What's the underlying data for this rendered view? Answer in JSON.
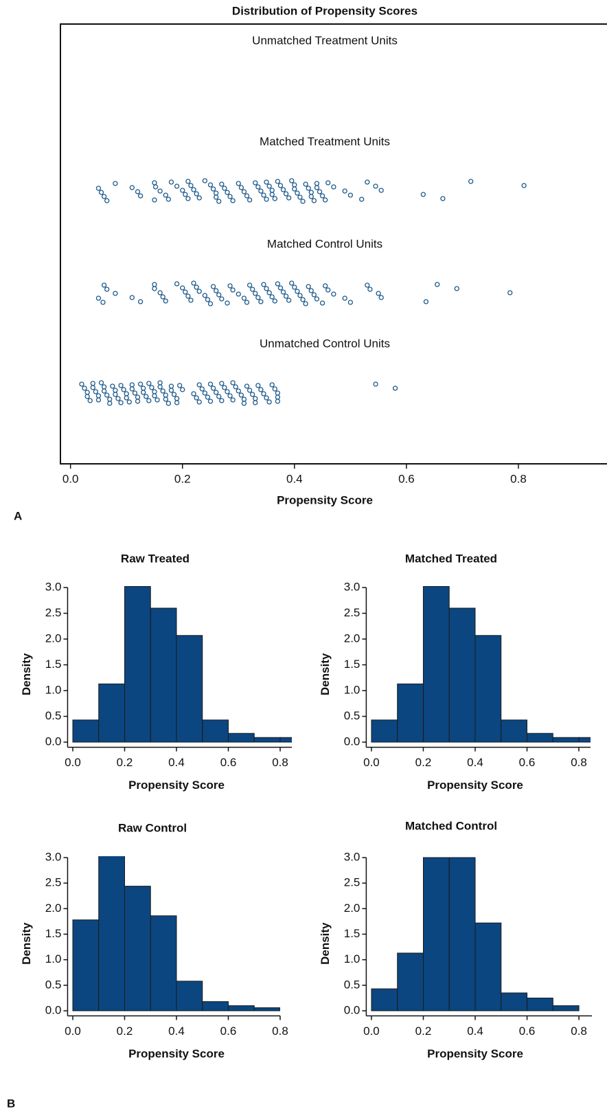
{
  "panel_labels": [
    "A",
    "B"
  ],
  "chart_data": [
    {
      "type": "strip",
      "title": "Distribution of Propensity Scores",
      "x_label": "Propensity Score",
      "xlim": [
        -0.018,
        0.957
      ],
      "xticks": [
        {
          "value": 0,
          "label": "0.0"
        },
        0.2,
        0.4,
        0.6,
        0.8
      ],
      "series": [
        {
          "name": "Unmatched Treatment Units",
          "color": "#1f5a8a",
          "values": []
        },
        {
          "name": "Matched Treatment Units",
          "color": "#1f5a8a",
          "values": [
            0.05,
            0.055,
            0.06,
            0.065,
            0.08,
            0.11,
            0.12,
            0.125,
            0.15,
            0.15,
            0.152,
            0.16,
            0.17,
            0.175,
            0.18,
            0.19,
            0.2,
            0.205,
            0.21,
            0.21,
            0.215,
            0.22,
            0.225,
            0.23,
            0.24,
            0.25,
            0.255,
            0.26,
            0.26,
            0.265,
            0.27,
            0.275,
            0.28,
            0.285,
            0.29,
            0.3,
            0.305,
            0.31,
            0.315,
            0.32,
            0.33,
            0.335,
            0.34,
            0.345,
            0.35,
            0.35,
            0.355,
            0.36,
            0.36,
            0.365,
            0.37,
            0.375,
            0.38,
            0.385,
            0.39,
            0.395,
            0.4,
            0.4,
            0.405,
            0.41,
            0.415,
            0.42,
            0.425,
            0.43,
            0.43,
            0.435,
            0.44,
            0.44,
            0.445,
            0.45,
            0.455,
            0.46,
            0.47,
            0.49,
            0.5,
            0.52,
            0.53,
            0.545,
            0.555,
            0.63,
            0.665,
            0.715,
            0.81
          ]
        },
        {
          "name": "Matched Control Units",
          "color": "#1f5a8a",
          "values": [
            0.05,
            0.058,
            0.06,
            0.065,
            0.08,
            0.11,
            0.125,
            0.15,
            0.15,
            0.16,
            0.165,
            0.17,
            0.19,
            0.2,
            0.205,
            0.21,
            0.215,
            0.22,
            0.225,
            0.23,
            0.24,
            0.245,
            0.25,
            0.255,
            0.26,
            0.265,
            0.27,
            0.28,
            0.285,
            0.29,
            0.3,
            0.31,
            0.315,
            0.32,
            0.325,
            0.33,
            0.335,
            0.34,
            0.345,
            0.35,
            0.355,
            0.36,
            0.365,
            0.37,
            0.375,
            0.38,
            0.385,
            0.39,
            0.395,
            0.4,
            0.405,
            0.41,
            0.415,
            0.42,
            0.425,
            0.43,
            0.435,
            0.44,
            0.45,
            0.455,
            0.46,
            0.47,
            0.49,
            0.5,
            0.53,
            0.535,
            0.55,
            0.555,
            0.635,
            0.655,
            0.69,
            0.785
          ]
        },
        {
          "name": "Unmatched Control Units",
          "color": "#1f5a8a",
          "values": [
            0.02,
            0.025,
            0.03,
            0.03,
            0.035,
            0.04,
            0.04,
            0.045,
            0.05,
            0.05,
            0.055,
            0.06,
            0.06,
            0.065,
            0.07,
            0.07,
            0.075,
            0.08,
            0.08,
            0.085,
            0.09,
            0.09,
            0.095,
            0.1,
            0.1,
            0.105,
            0.11,
            0.11,
            0.115,
            0.12,
            0.12,
            0.125,
            0.13,
            0.13,
            0.135,
            0.14,
            0.14,
            0.145,
            0.15,
            0.15,
            0.155,
            0.16,
            0.16,
            0.165,
            0.17,
            0.17,
            0.175,
            0.18,
            0.18,
            0.185,
            0.19,
            0.19,
            0.195,
            0.2,
            0.22,
            0.225,
            0.23,
            0.23,
            0.235,
            0.24,
            0.245,
            0.25,
            0.25,
            0.255,
            0.26,
            0.265,
            0.27,
            0.27,
            0.275,
            0.28,
            0.285,
            0.29,
            0.29,
            0.295,
            0.3,
            0.305,
            0.31,
            0.31,
            0.315,
            0.32,
            0.325,
            0.33,
            0.33,
            0.335,
            0.34,
            0.345,
            0.35,
            0.355,
            0.36,
            0.365,
            0.37,
            0.37,
            0.37,
            0.545,
            0.58
          ]
        }
      ]
    },
    {
      "type": "histogram",
      "title": "Raw Treated",
      "x_label": "Propensity Score",
      "y_label": "Density",
      "color": "#0b4680",
      "bins": [
        0,
        0.1,
        0.2,
        0.3,
        0.4,
        0.5,
        0.6,
        0.7,
        0.8,
        0.9
      ],
      "values": [
        0.43,
        1.13,
        3.02,
        2.6,
        2.07,
        0.43,
        0.17,
        0.09,
        0.09
      ],
      "xlim": [
        -0.02,
        0.845
      ],
      "ylim": [
        -0.1,
        3.0
      ],
      "xticks": [
        {
          "value": 0,
          "label": "0.0"
        },
        0.2,
        0.4,
        0.6,
        0.8
      ],
      "yticks": [
        {
          "value": 0,
          "label": "0.0"
        },
        0.5,
        {
          "value": 1,
          "label": "1.0"
        },
        1.5,
        {
          "value": 2,
          "label": "2.0"
        },
        2.5,
        {
          "value": 3,
          "label": "3.0"
        }
      ]
    },
    {
      "type": "histogram",
      "title": "Matched Treated",
      "x_label": "Propensity Score",
      "y_label": "Density",
      "color": "#0b4680",
      "bins": [
        0,
        0.1,
        0.2,
        0.3,
        0.4,
        0.5,
        0.6,
        0.7,
        0.8,
        0.9
      ],
      "values": [
        0.43,
        1.13,
        3.02,
        2.6,
        2.07,
        0.43,
        0.17,
        0.09,
        0.09
      ],
      "xlim": [
        -0.02,
        0.845
      ],
      "ylim": [
        -0.1,
        3.0
      ],
      "xticks": [
        {
          "value": 0,
          "label": "0.0"
        },
        0.2,
        0.4,
        0.6,
        0.8
      ],
      "yticks": [
        {
          "value": 0,
          "label": "0.0"
        },
        0.5,
        {
          "value": 1,
          "label": "1.0"
        },
        1.5,
        {
          "value": 2,
          "label": "2.0"
        },
        2.5,
        {
          "value": 3,
          "label": "3.0"
        }
      ]
    },
    {
      "type": "histogram",
      "title": "Raw Control",
      "x_label": "Propensity Score",
      "y_label": "Density",
      "color": "#0b4680",
      "bins": [
        0,
        0.1,
        0.2,
        0.3,
        0.4,
        0.5,
        0.6,
        0.7,
        0.8
      ],
      "values": [
        1.78,
        3.07,
        2.44,
        1.86,
        0.58,
        0.18,
        0.1,
        0.06
      ],
      "xlim": [
        -0.02,
        0.8
      ],
      "ylim": [
        -0.1,
        3.0
      ],
      "xticks": [
        {
          "value": 0,
          "label": "0.0"
        },
        0.2,
        0.4,
        0.6,
        0.8
      ],
      "yticks": [
        {
          "value": 0,
          "label": "0.0"
        },
        0.5,
        {
          "value": 1,
          "label": "1.0"
        },
        1.5,
        {
          "value": 2,
          "label": "2.0"
        },
        2.5,
        {
          "value": 3,
          "label": "3.0"
        }
      ]
    },
    {
      "type": "histogram",
      "title": "Matched Control",
      "x_label": "Propensity Score",
      "y_label": "Density",
      "color": "#0b4680",
      "bins": [
        0,
        0.1,
        0.2,
        0.3,
        0.4,
        0.5,
        0.6,
        0.7,
        0.8
      ],
      "values": [
        0.43,
        1.13,
        3.0,
        3.0,
        1.72,
        0.35,
        0.25,
        0.1
      ],
      "xlim": [
        -0.02,
        0.85
      ],
      "ylim": [
        -0.1,
        3.0
      ],
      "xticks": [
        {
          "value": 0,
          "label": "0.0"
        },
        0.2,
        0.4,
        0.6,
        0.8
      ],
      "yticks": [
        {
          "value": 0,
          "label": "0.0"
        },
        0.5,
        {
          "value": 1,
          "label": "1.0"
        },
        1.5,
        {
          "value": 2,
          "label": "2.0"
        },
        2.5,
        {
          "value": 3,
          "label": "3.0"
        }
      ]
    }
  ]
}
